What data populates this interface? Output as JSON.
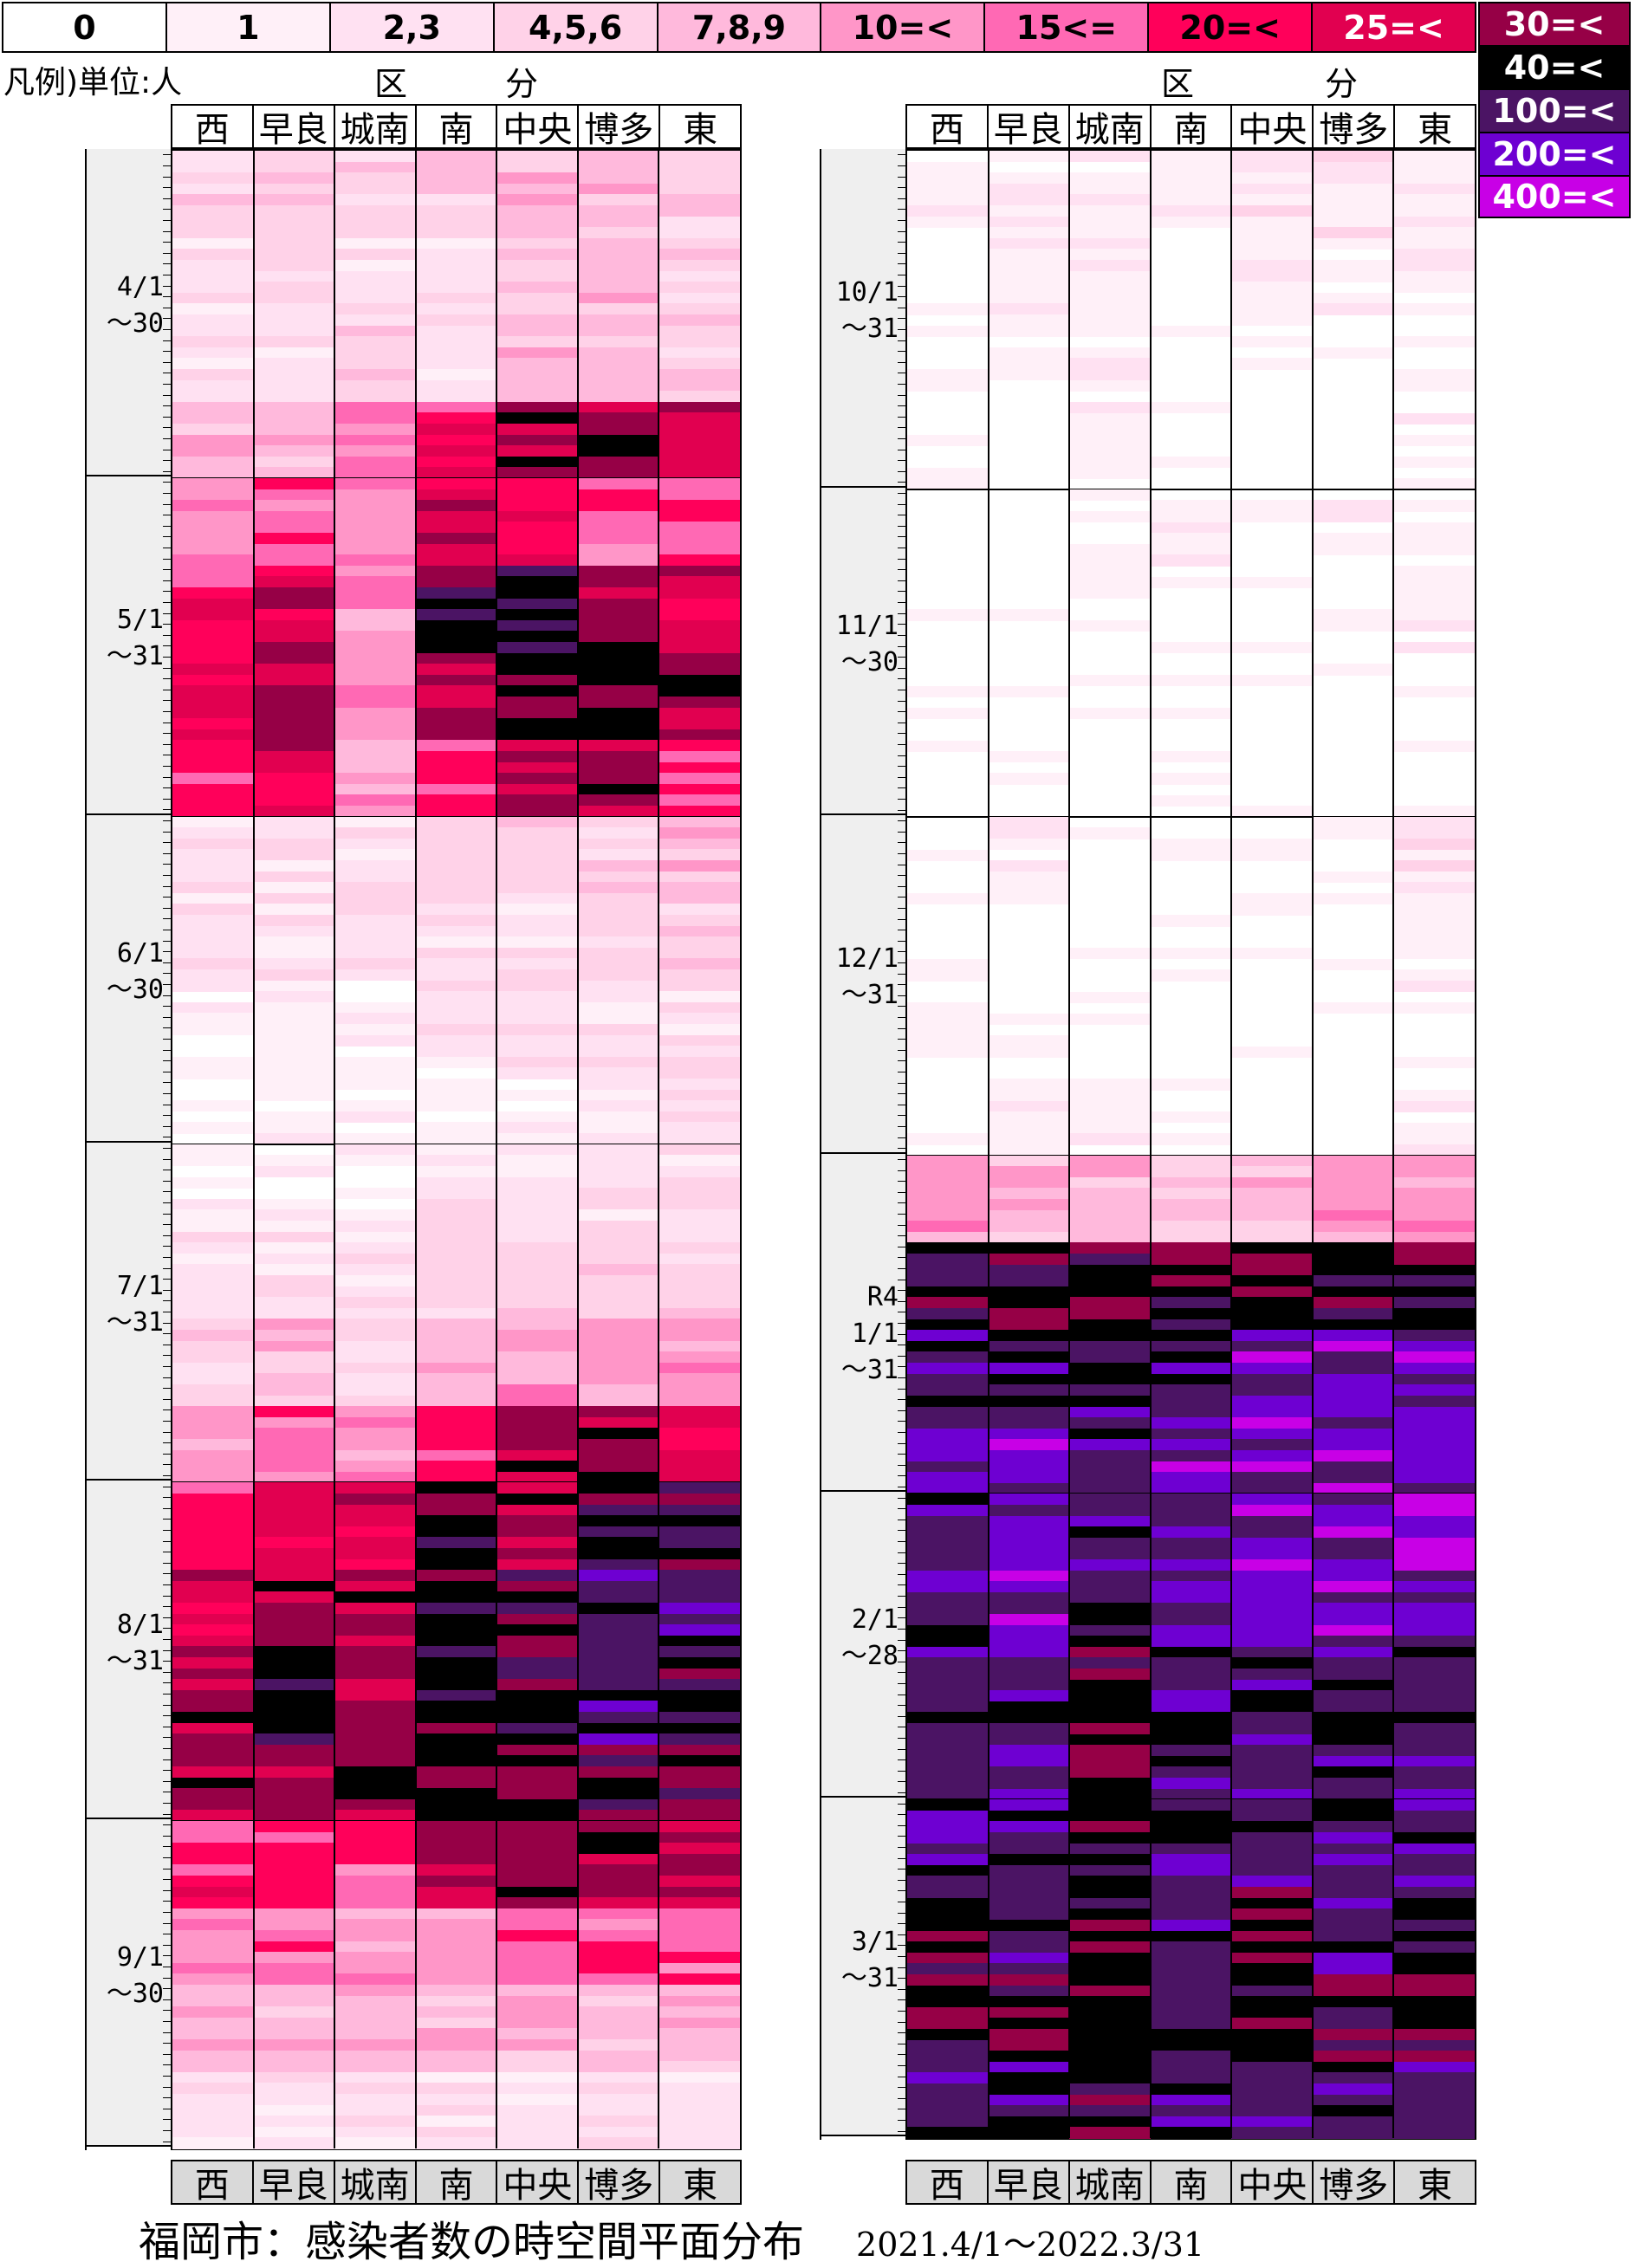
{
  "legend": {
    "top": [
      {
        "label": "0",
        "bg": "#ffffff",
        "fg": "#000000"
      },
      {
        "label": "1",
        "bg": "#fff0f8",
        "fg": "#000000"
      },
      {
        "label": "2,3",
        "bg": "#ffe1f2",
        "fg": "#000000"
      },
      {
        "label": "4,5,6",
        "bg": "#ffd2e8",
        "fg": "#000000"
      },
      {
        "label": "7,8,9",
        "bg": "#ffb9dc",
        "fg": "#000000"
      },
      {
        "label": "10=<",
        "bg": "#ff96c8",
        "fg": "#000000"
      },
      {
        "label": "15<=",
        "bg": "#ff69b4",
        "fg": "#000000"
      },
      {
        "label": "20=<",
        "bg": "#ff005a",
        "fg": "#000000"
      },
      {
        "label": "25=<",
        "bg": "#e10050",
        "fg": "#ffffff"
      }
    ],
    "side": [
      {
        "label": "30=<",
        "bg": "#960046",
        "fg": "#ffffff"
      },
      {
        "label": "40=<",
        "bg": "#000000",
        "fg": "#ffffff"
      },
      {
        "label": "100=<",
        "bg": "#4b1464",
        "fg": "#ffffff"
      },
      {
        "label": "200=<",
        "bg": "#6e00d2",
        "fg": "#ffffff"
      },
      {
        "label": "400=<",
        "bg": "#c800e6",
        "fg": "#ffffff"
      }
    ],
    "unit": "凡例)単位:人"
  },
  "axis_words": [
    "区",
    "分"
  ],
  "districts": [
    "西",
    "早良",
    "城南",
    "南",
    "中央",
    "博多",
    "東"
  ],
  "title": "福岡市：感染者数の時空間平面分布",
  "date_range": "2021.4/1～2022.3/31",
  "chart_data": {
    "type": "heatmap",
    "title": "福岡市：感染者数の時空間平面分布",
    "period": "2021.4/1～2022.3/31",
    "unit": "人",
    "x_categories": [
      "西",
      "早良",
      "城南",
      "南",
      "中央",
      "博多",
      "東"
    ],
    "color_levels": [
      "0",
      "1",
      "2,3",
      "4,5,6",
      "7,8,9",
      "10=<",
      "15<=",
      "20=<",
      "25=<",
      "30=<",
      "40=<",
      "100=<",
      "200=<",
      "400=<"
    ],
    "panels": [
      {
        "months": [
          {
            "label": "4/1\n～30",
            "days": 30,
            "level": [
              [
                3,
                2,
                2,
                4
              ],
              [
                3,
                3,
                2,
                4
              ],
              [
                3,
                2,
                3,
                6
              ],
              [
                3,
                2,
                2,
                7
              ],
              [
                4,
                3,
                4,
                9
              ],
              [
                4,
                4,
                4,
                9
              ],
              [
                3,
                3,
                3,
                8
              ]
            ]
          },
          {
            "label": "5/1\n～31",
            "days": 31,
            "level": [
              [
                5,
                7,
                8,
                7
              ],
              [
                6,
                8,
                9,
                8
              ],
              [
                5,
                5,
                5,
                5
              ],
              [
                8,
                10,
                9,
                7
              ],
              [
                8,
                10,
                10,
                9
              ],
              [
                6,
                9,
                10,
                9
              ],
              [
                6,
                8,
                9,
                7
              ]
            ]
          },
          {
            "label": "6/1\n～30",
            "days": 30,
            "level": [
              [
                2,
                2,
                1,
                0
              ],
              [
                2,
                2,
                1,
                1
              ],
              [
                2,
                2,
                1,
                1
              ],
              [
                3,
                2,
                2,
                1
              ],
              [
                3,
                2,
                2,
                1
              ],
              [
                3,
                3,
                2,
                2
              ],
              [
                4,
                3,
                2,
                2
              ]
            ]
          },
          {
            "label": "7/1\n～31",
            "days": 31,
            "level": [
              [
                1,
                2,
                3,
                5
              ],
              [
                1,
                2,
                4,
                6
              ],
              [
                1,
                2,
                3,
                5
              ],
              [
                2,
                3,
                4,
                7
              ],
              [
                2,
                3,
                5,
                9
              ],
              [
                2,
                3,
                5,
                9
              ],
              [
                2,
                3,
                5,
                8
              ]
            ]
          },
          {
            "label": "8/1\n～31",
            "days": 31,
            "level": [
              [
                7,
                8,
                9,
                9
              ],
              [
                8,
                9,
                10,
                9
              ],
              [
                8,
                9,
                9,
                9
              ],
              [
                10,
                10,
                10,
                10
              ],
              [
                9,
                10,
                10,
                10
              ],
              [
                10,
                11,
                11,
                10
              ],
              [
                10,
                11,
                10,
                10
              ]
            ]
          },
          {
            "label": "9/1\n～30",
            "days": 30,
            "level": [
              [
                7,
                5,
                4,
                2
              ],
              [
                7,
                6,
                4,
                2
              ],
              [
                6,
                5,
                4,
                2
              ],
              [
                9,
                5,
                4,
                2
              ],
              [
                9,
                6,
                4,
                2
              ],
              [
                9,
                6,
                4,
                2
              ],
              [
                9,
                6,
                4,
                2
              ]
            ]
          }
        ]
      },
      {
        "months": [
          {
            "label": "10/1\n～31",
            "days": 31,
            "level": [
              [
                1,
                0,
                0,
                0
              ],
              [
                1,
                1,
                0,
                0
              ],
              [
                1,
                1,
                1,
                1
              ],
              [
                1,
                0,
                0,
                0
              ],
              [
                2,
                1,
                0,
                0
              ],
              [
                2,
                1,
                0,
                0
              ],
              [
                1,
                1,
                0,
                1
              ]
            ]
          },
          {
            "label": "11/1\n～30",
            "days": 30,
            "level": [
              [
                0,
                0,
                0,
                0
              ],
              [
                0,
                0,
                0,
                0
              ],
              [
                0,
                0,
                0,
                0
              ],
              [
                1,
                0,
                0,
                0
              ],
              [
                0,
                0,
                0,
                0
              ],
              [
                1,
                0,
                0,
                0
              ],
              [
                1,
                1,
                0,
                0
              ]
            ]
          },
          {
            "label": "12/1\n～31",
            "days": 31,
            "level": [
              [
                0,
                0,
                0,
                0
              ],
              [
                1,
                0,
                0,
                1
              ],
              [
                0,
                0,
                0,
                1
              ],
              [
                0,
                0,
                0,
                0
              ],
              [
                0,
                0,
                0,
                0
              ],
              [
                0,
                0,
                0,
                0
              ],
              [
                2,
                1,
                0,
                1
              ]
            ]
          },
          {
            "label": "R4\n1/1\n～31",
            "days": 31,
            "level": [
              [
                5,
                10,
                11,
                12
              ],
              [
                4,
                10,
                11,
                12
              ],
              [
                4,
                10,
                11,
                11
              ],
              [
                4,
                10,
                11,
                12
              ],
              [
                4,
                10,
                12,
                12
              ],
              [
                5,
                10,
                12,
                12
              ],
              [
                5,
                10,
                12,
                12
              ]
            ]
          },
          {
            "label": "2/1\n～28",
            "days": 28,
            "level": [
              [
                11,
                11,
                11,
                11
              ],
              [
                12,
                12,
                11,
                11
              ],
              [
                11,
                11,
                10,
                10
              ],
              [
                12,
                12,
                11,
                11
              ],
              [
                12,
                12,
                11,
                11
              ],
              [
                12,
                12,
                11,
                11
              ],
              [
                12,
                12,
                11,
                12
              ]
            ]
          },
          {
            "label": "3/1\n～31",
            "days": 31,
            "level": [
              [
                11,
                10,
                10,
                11
              ],
              [
                11,
                11,
                10,
                11
              ],
              [
                10,
                10,
                10,
                10
              ],
              [
                11,
                11,
                11,
                11
              ],
              [
                11,
                10,
                10,
                11
              ],
              [
                11,
                11,
                10,
                11
              ],
              [
                11,
                11,
                10,
                11
              ]
            ]
          }
        ]
      }
    ]
  }
}
